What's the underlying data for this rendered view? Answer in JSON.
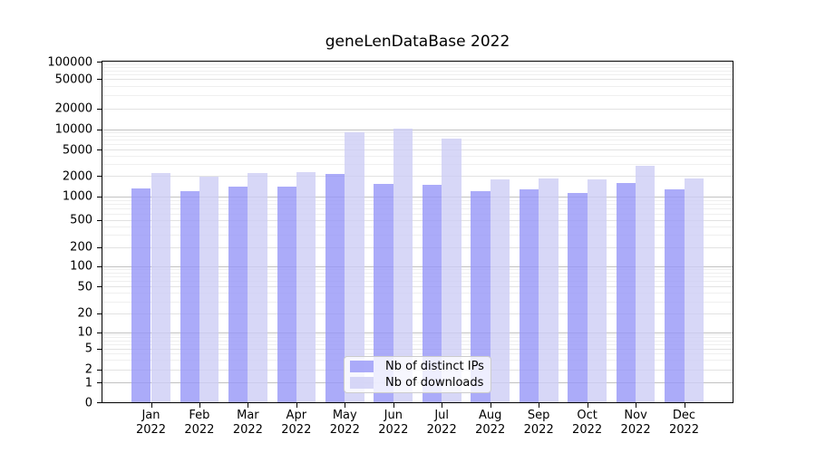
{
  "chart_data": {
    "type": "bar",
    "title": "geneLenDataBase 2022",
    "x_ticks": [
      {
        "month": "Jan",
        "year": "2022"
      },
      {
        "month": "Feb",
        "year": "2022"
      },
      {
        "month": "Mar",
        "year": "2022"
      },
      {
        "month": "Apr",
        "year": "2022"
      },
      {
        "month": "May",
        "year": "2022"
      },
      {
        "month": "Jun",
        "year": "2022"
      },
      {
        "month": "Jul",
        "year": "2022"
      },
      {
        "month": "Aug",
        "year": "2022"
      },
      {
        "month": "Sep",
        "year": "2022"
      },
      {
        "month": "Oct",
        "year": "2022"
      },
      {
        "month": "Nov",
        "year": "2022"
      },
      {
        "month": "Dec",
        "year": "2022"
      }
    ],
    "series": [
      {
        "name": "Nb of distinct IPs",
        "color": "#9696f7",
        "alpha": 0.8,
        "values": [
          1320,
          1200,
          1400,
          1390,
          2100,
          1500,
          1450,
          1200,
          1270,
          1120,
          1580,
          1280
        ]
      },
      {
        "name": "Nb of downloads",
        "color": "#cdcdf5",
        "alpha": 0.8,
        "values": [
          2170,
          1950,
          2230,
          2240,
          9100,
          10400,
          7200,
          1750,
          1840,
          1750,
          2800,
          1800
        ]
      }
    ],
    "y_axis": {
      "scale": "symlog",
      "ticks": [
        0,
        1,
        2,
        5,
        10,
        20,
        50,
        100,
        200,
        500,
        1000,
        2000,
        5000,
        10000,
        20000,
        50000,
        100000
      ],
      "limits": [
        0,
        100000
      ]
    },
    "grid": true,
    "legend": {
      "position": "lower-center"
    }
  },
  "colors": {
    "major_grid": "#c2c2c2",
    "labeled_grid": "#e2e2e2",
    "minor_grid": "#efefef",
    "axis": "#000000",
    "legend_border": "#cccccc"
  }
}
